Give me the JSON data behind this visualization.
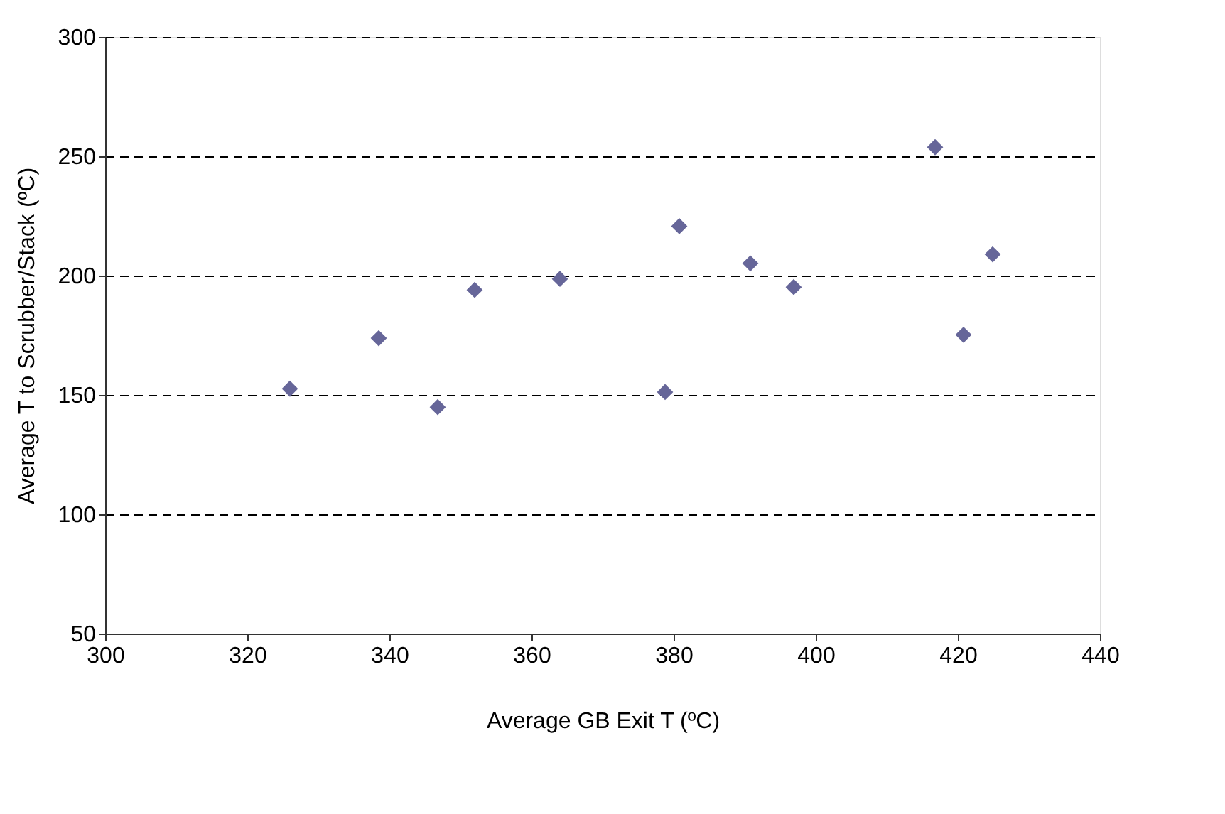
{
  "chart_data": {
    "type": "scatter",
    "xlabel": "Average GB Exit T (ºC)",
    "ylabel": "Average T to Scrubber/Stack (ºC)",
    "x": [
      326,
      338.5,
      346.8,
      352,
      364,
      378.8,
      380.8,
      390.8,
      396.9,
      416.8,
      420.8,
      424.9
    ],
    "series": [
      {
        "color": "#666699",
        "values": [
          152.6,
          173.8,
          144.9,
          194,
          198.6,
          151.2,
          220.7,
          205.1,
          195.2,
          253.8,
          175.2,
          208.9
        ]
      }
    ],
    "xlim": [
      300,
      440
    ],
    "xticks": [
      300,
      320,
      340,
      360,
      380,
      400,
      420,
      440
    ],
    "ylim": [
      50,
      300
    ],
    "yticks": [
      50,
      100,
      150,
      200,
      250,
      300
    ],
    "grid": "y",
    "marker": "diamond"
  }
}
